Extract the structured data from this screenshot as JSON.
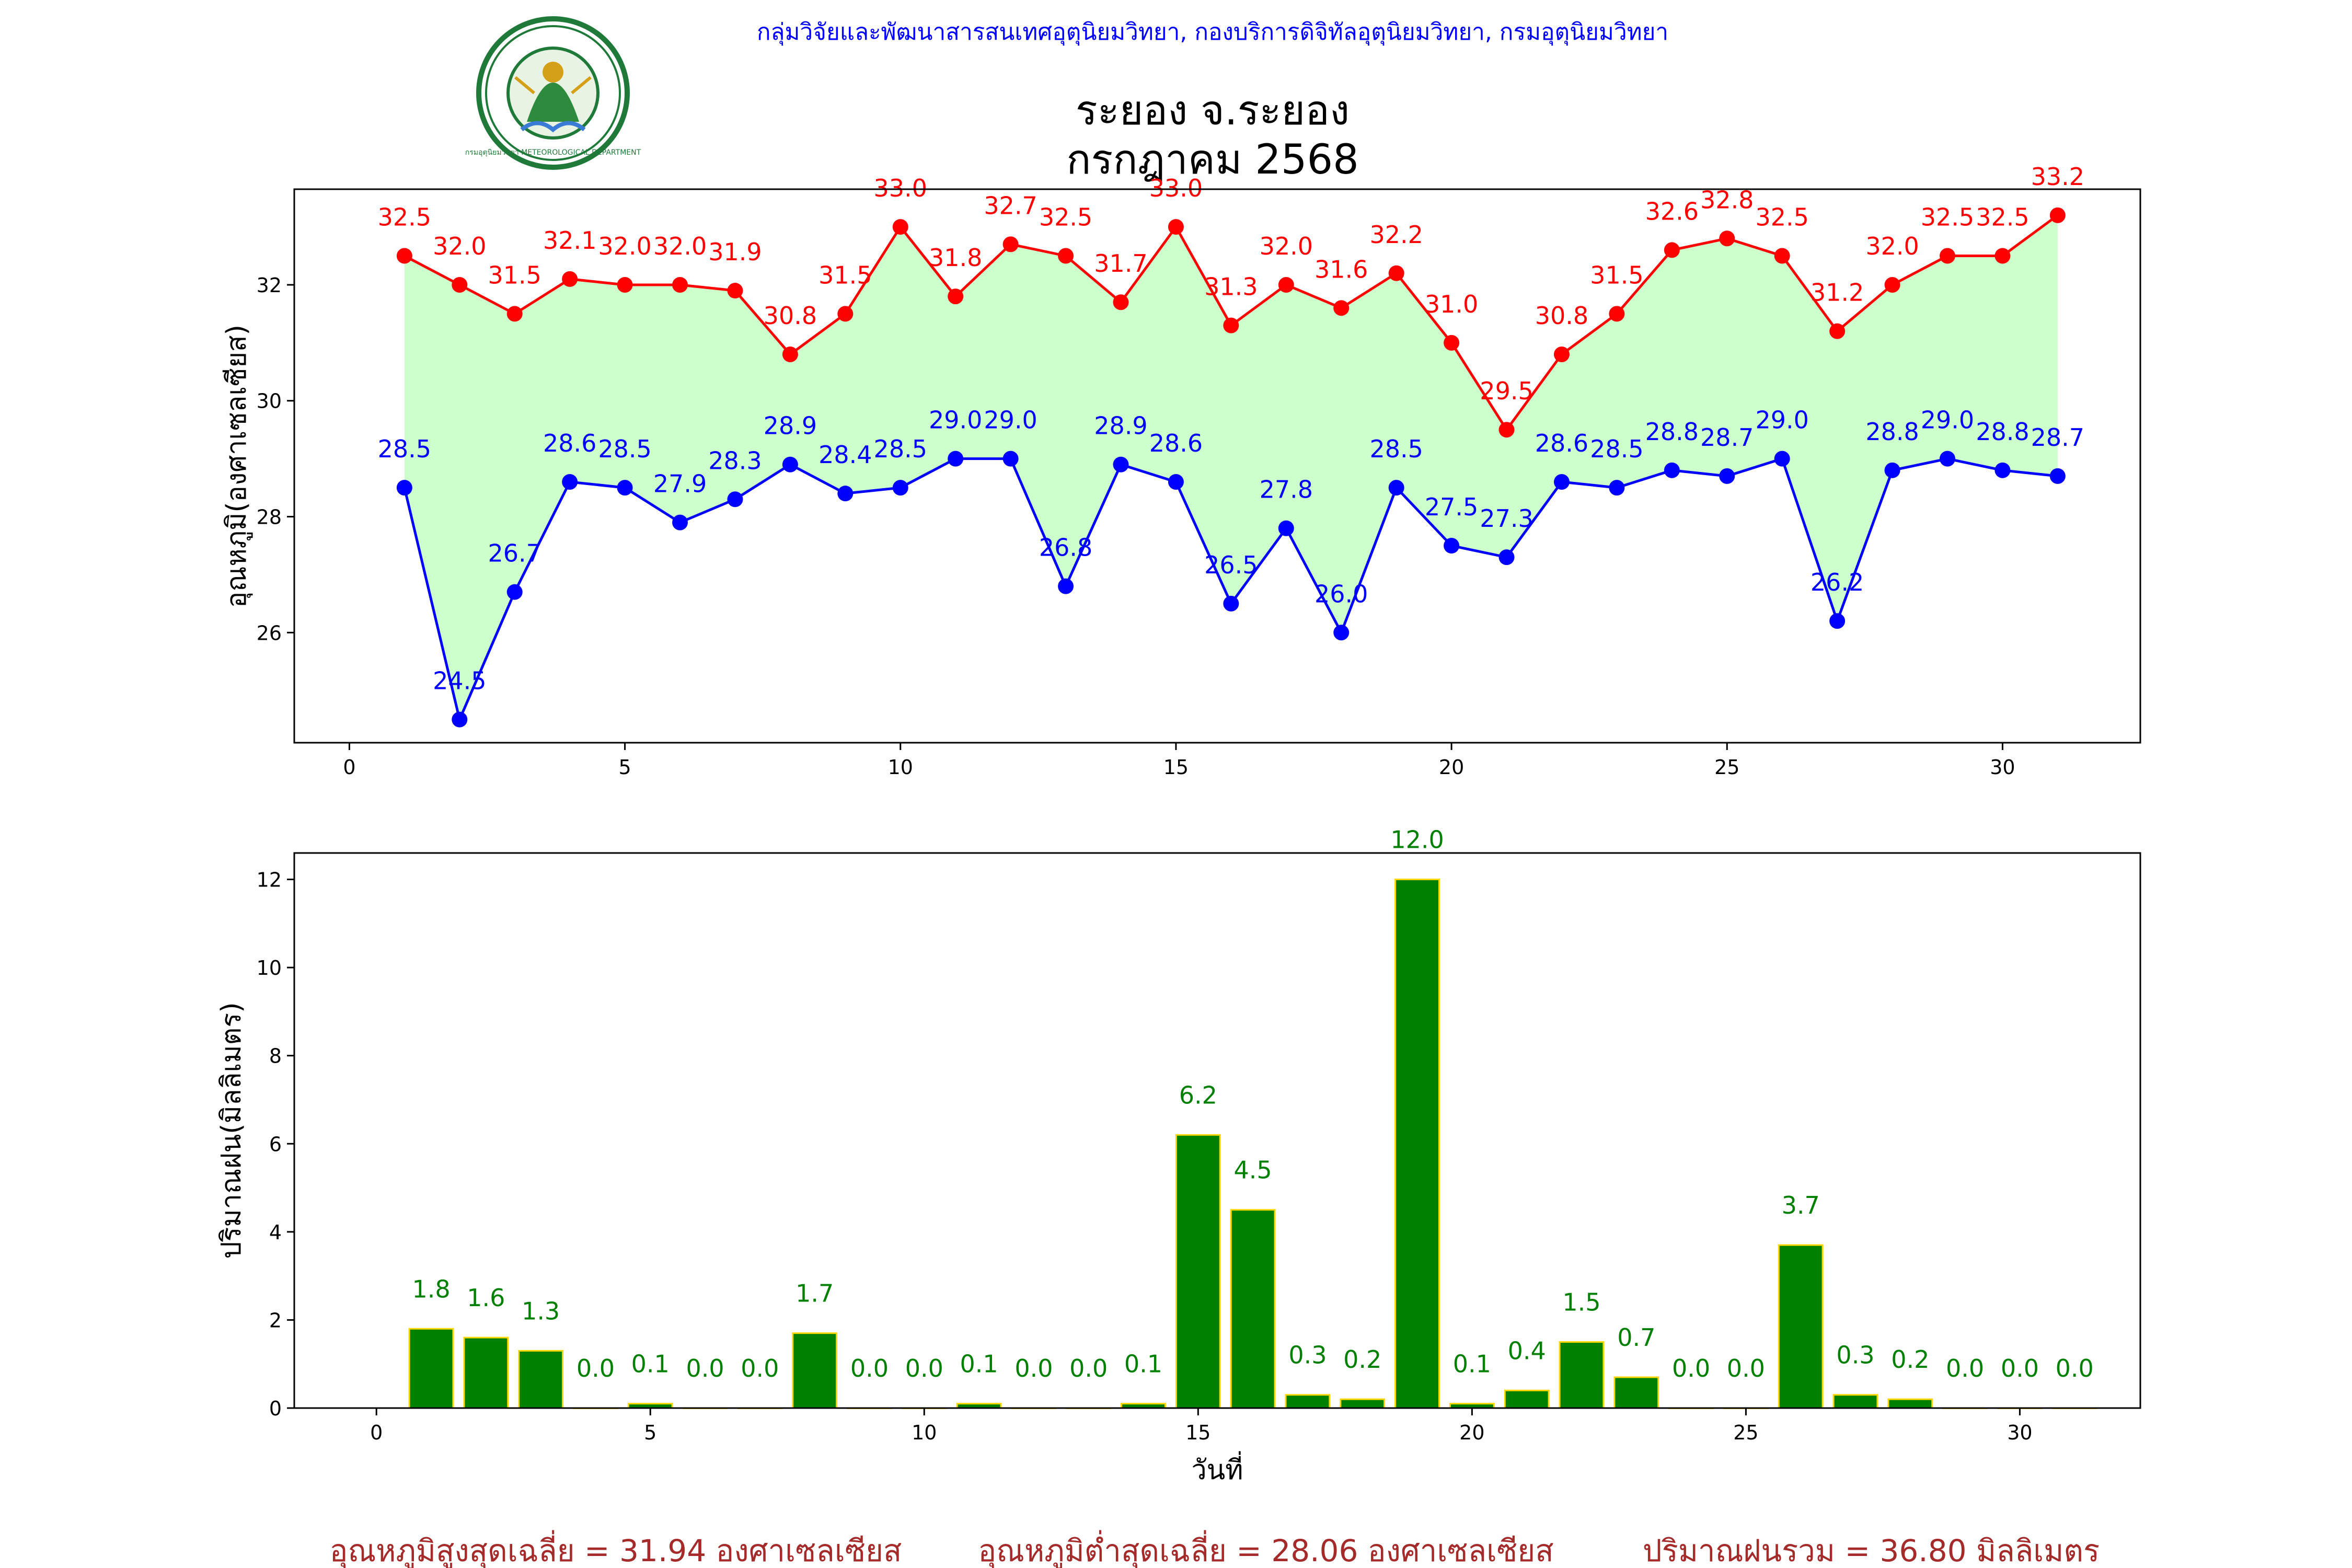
{
  "header": {
    "department": "กลุ่มวิจัยและพัฒนาสารสนเทศอุตุนิยมวิทยา, กองบริการดิจิทัลอุตุนิยมวิทยา, กรมอุตุนิยมวิทยา",
    "station": "ระยอง จ.ระยอง",
    "period": "กรกฎาคม 2568",
    "logo_text": "กรมอุตุนิยมวิทยา METEOROLOGICAL DEPARTMENT",
    "logo_icon": "tmd-seal-icon"
  },
  "colors": {
    "tmax": "#ff0000",
    "tmin": "#0000ff",
    "fill": "#ccffcc",
    "rain_bar": "#008000",
    "rain_edge": "#ffd700",
    "rain_label": "#008000",
    "footer": "#a52a2a",
    "header": "#0000ff"
  },
  "chart_data": [
    {
      "type": "line",
      "ylabel": "อุณหภูมิ(องศาเซลเซียส)",
      "xlabel": "",
      "xlim": [
        -1,
        32.5
      ],
      "ylim": [
        24.1,
        33.65
      ],
      "xticks": [
        0,
        5,
        10,
        15,
        20,
        25,
        30
      ],
      "yticks": [
        26,
        28,
        30,
        32
      ],
      "x": [
        1,
        2,
        3,
        4,
        5,
        6,
        7,
        8,
        9,
        10,
        11,
        12,
        13,
        14,
        15,
        16,
        17,
        18,
        19,
        20,
        21,
        22,
        23,
        24,
        25,
        26,
        27,
        28,
        29,
        30,
        31
      ],
      "series": [
        {
          "key": "tmax",
          "values": [
            32.5,
            32.0,
            31.5,
            32.1,
            32.0,
            32.0,
            31.9,
            30.8,
            31.5,
            33.0,
            31.8,
            32.7,
            32.5,
            31.7,
            33.0,
            31.3,
            32.0,
            31.6,
            32.2,
            31.0,
            29.5,
            30.8,
            31.5,
            32.6,
            32.8,
            32.5,
            31.2,
            32.0,
            32.5,
            32.5,
            33.2
          ]
        },
        {
          "key": "tmin",
          "values": [
            28.5,
            24.5,
            26.7,
            28.6,
            28.5,
            27.9,
            28.3,
            28.9,
            28.4,
            28.5,
            29.0,
            29.0,
            26.8,
            28.9,
            28.6,
            26.5,
            27.8,
            26.0,
            28.5,
            27.5,
            27.3,
            28.6,
            28.5,
            28.8,
            28.7,
            29.0,
            26.2,
            28.8,
            29.0,
            28.8,
            28.7
          ]
        }
      ],
      "grid": false,
      "legend": "none"
    },
    {
      "type": "bar",
      "ylabel": "ปริมาณฝน(มิลลิเมตร)",
      "xlabel": "วันที่",
      "xlim": [
        -1.5,
        32.2
      ],
      "ylim": [
        0,
        12.6
      ],
      "xticks": [
        0,
        5,
        10,
        15,
        20,
        25,
        30
      ],
      "yticks": [
        0,
        2,
        4,
        6,
        8,
        10,
        12
      ],
      "x": [
        1,
        2,
        3,
        4,
        5,
        6,
        7,
        8,
        9,
        10,
        11,
        12,
        13,
        14,
        15,
        16,
        17,
        18,
        19,
        20,
        21,
        22,
        23,
        24,
        25,
        26,
        27,
        28,
        29,
        30,
        31
      ],
      "values": [
        1.8,
        1.6,
        1.3,
        0.0,
        0.1,
        0.0,
        0.0,
        1.7,
        0.0,
        0.0,
        0.1,
        0.0,
        0.0,
        0.1,
        6.2,
        4.5,
        0.3,
        0.2,
        12.0,
        0.1,
        0.4,
        1.5,
        0.7,
        0.0,
        0.0,
        3.7,
        0.3,
        0.2,
        0.0,
        0.0,
        0.0
      ],
      "grid": false,
      "legend": "none"
    }
  ],
  "footer": {
    "avg_max": "อุณหภูมิสูงสุดเฉลี่ย = 31.94 องศาเซลเซียส",
    "avg_min": "อุณหภูมิต่ำสุดเฉลี่ย = 28.06 องศาเซลเซียส",
    "total_rain": "ปริมาณฝนรวม = 36.80 มิลลิเมตร"
  }
}
